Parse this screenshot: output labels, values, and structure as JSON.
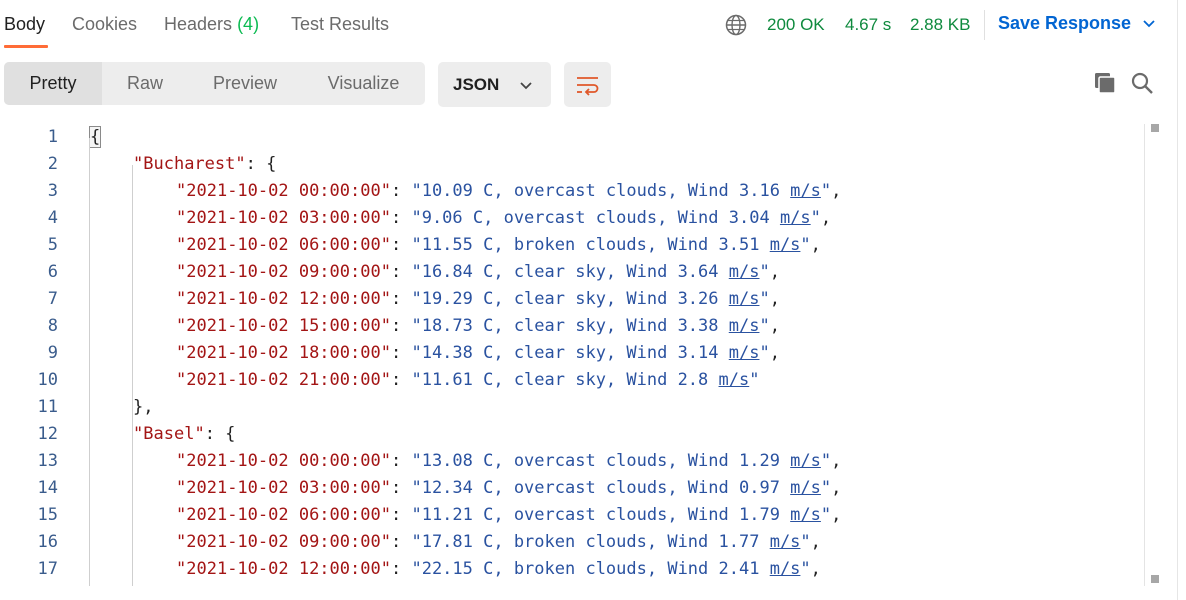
{
  "tabs": {
    "body": "Body",
    "cookies": "Cookies",
    "headers": "Headers",
    "headers_count": "(4)",
    "test_results": "Test Results"
  },
  "status": {
    "code": "200 OK",
    "time": "4.67 s",
    "size": "2.88 KB"
  },
  "save_response": "Save Response",
  "view_modes": {
    "pretty": "Pretty",
    "raw": "Raw",
    "preview": "Preview",
    "visualize": "Visualize",
    "active": "Pretty"
  },
  "format": "JSON",
  "icons": {
    "globe": "globe-icon",
    "wrap": "wrap-lines-icon",
    "copy": "copy-icon",
    "search": "search-icon",
    "chevron": "chevron-down-icon"
  },
  "colors": {
    "accent": "#ff6c37",
    "status_green": "#0f8a3e",
    "link_blue": "#0265d2"
  },
  "lines": [
    {
      "n": "1",
      "indent": 0,
      "open": "{"
    },
    {
      "n": "2",
      "indent": 1,
      "key": "Bucharest",
      "open": "{"
    },
    {
      "n": "3",
      "indent": 2,
      "key": "2021-10-02 00:00:00",
      "value": "10.09 C, overcast clouds, Wind 3.16 m/s",
      "comma": ","
    },
    {
      "n": "4",
      "indent": 2,
      "key": "2021-10-02 03:00:00",
      "value": "9.06 C, overcast clouds, Wind 3.04 m/s",
      "comma": ","
    },
    {
      "n": "5",
      "indent": 2,
      "key": "2021-10-02 06:00:00",
      "value": "11.55 C, broken clouds, Wind 3.51 m/s",
      "comma": ","
    },
    {
      "n": "6",
      "indent": 2,
      "key": "2021-10-02 09:00:00",
      "value": "16.84 C, clear sky, Wind 3.64 m/s",
      "comma": ","
    },
    {
      "n": "7",
      "indent": 2,
      "key": "2021-10-02 12:00:00",
      "value": "19.29 C, clear sky, Wind 3.26 m/s",
      "comma": ","
    },
    {
      "n": "8",
      "indent": 2,
      "key": "2021-10-02 15:00:00",
      "value": "18.73 C, clear sky, Wind 3.38 m/s",
      "comma": ","
    },
    {
      "n": "9",
      "indent": 2,
      "key": "2021-10-02 18:00:00",
      "value": "14.38 C, clear sky, Wind 3.14 m/s",
      "comma": ","
    },
    {
      "n": "10",
      "indent": 2,
      "key": "2021-10-02 21:00:00",
      "value": "11.61 C, clear sky, Wind 2.8 m/s",
      "comma": ""
    },
    {
      "n": "11",
      "indent": 1,
      "close": "},"
    },
    {
      "n": "12",
      "indent": 1,
      "key": "Basel",
      "open": "{"
    },
    {
      "n": "13",
      "indent": 2,
      "key": "2021-10-02 00:00:00",
      "value": "13.08 C, overcast clouds, Wind 1.29 m/s",
      "comma": ","
    },
    {
      "n": "14",
      "indent": 2,
      "key": "2021-10-02 03:00:00",
      "value": "12.34 C, overcast clouds, Wind 0.97 m/s",
      "comma": ","
    },
    {
      "n": "15",
      "indent": 2,
      "key": "2021-10-02 06:00:00",
      "value": "11.21 C, overcast clouds, Wind 1.79 m/s",
      "comma": ","
    },
    {
      "n": "16",
      "indent": 2,
      "key": "2021-10-02 09:00:00",
      "value": "17.81 C, broken clouds, Wind 1.77 m/s",
      "comma": ","
    },
    {
      "n": "17",
      "indent": 2,
      "key": "2021-10-02 12:00:00",
      "value": "22.15 C, broken clouds, Wind 2.41 m/s",
      "comma": ","
    }
  ]
}
